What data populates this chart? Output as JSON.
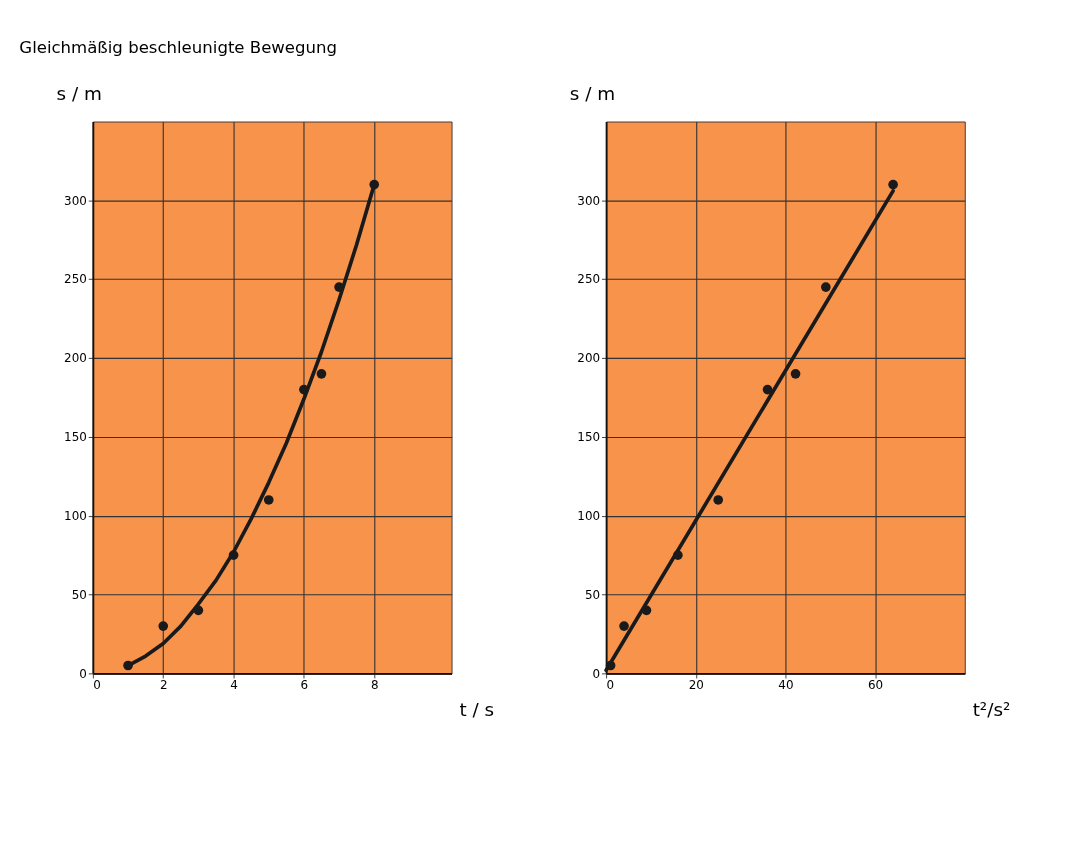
{
  "chart_data": [
    {
      "type": "scatter",
      "title": "Gleichmäßig beschleunigte Bewegung",
      "xlabel": "t / s",
      "ylabel": "s / m",
      "xlim": [
        0,
        10.2
      ],
      "ylim": [
        0,
        350
      ],
      "xticks": [
        0,
        2,
        4,
        6,
        8
      ],
      "yticks": [
        0,
        50,
        100,
        150,
        200,
        250,
        300
      ],
      "grid": true,
      "series": [
        {
          "marker": "circle",
          "color": "#1a1a1a",
          "x": [
            1,
            2,
            3,
            4,
            5,
            6,
            6.5,
            7,
            8
          ],
          "values": [
            5,
            30,
            40,
            75,
            110,
            180,
            190,
            245,
            310
          ]
        },
        {
          "type": "line",
          "color": "#1a1a1a",
          "x": [
            1,
            1.5,
            2,
            2.5,
            3,
            3.5,
            4,
            4.5,
            5,
            5.5,
            6,
            6.5,
            7,
            7.5,
            8
          ],
          "values": [
            5,
            11,
            19,
            30,
            44,
            59,
            77,
            98,
            121,
            146,
            174,
            204,
            237,
            272,
            310
          ]
        }
      ]
    },
    {
      "type": "scatter",
      "xlabel": "t²/s²",
      "ylabel": "s / m",
      "xlim": [
        0,
        80
      ],
      "ylim": [
        0,
        350
      ],
      "xticks": [
        0,
        20,
        40,
        60
      ],
      "yticks": [
        0,
        50,
        100,
        150,
        200,
        250,
        300
      ],
      "grid": true,
      "series": [
        {
          "marker": "circle",
          "color": "#1a1a1a",
          "x": [
            1,
            4,
            9,
            16,
            25,
            36,
            42.25,
            49,
            64
          ],
          "values": [
            5,
            30,
            40,
            75,
            110,
            180,
            190,
            245,
            310
          ]
        },
        {
          "type": "line",
          "color": "#1a1a1a",
          "x": [
            0,
            64
          ],
          "values": [
            2,
            306
          ]
        }
      ]
    }
  ]
}
